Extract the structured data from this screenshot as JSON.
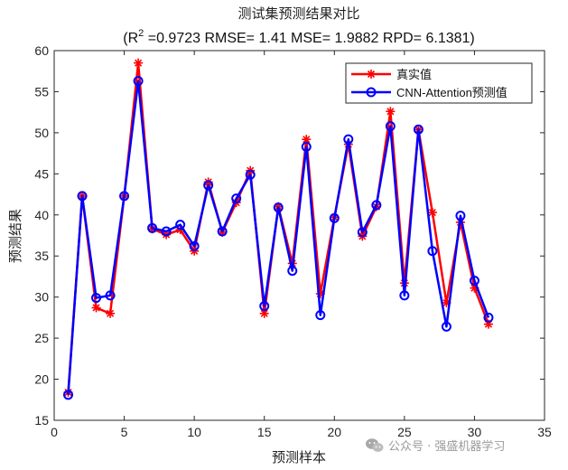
{
  "chart_data": {
    "type": "line",
    "title": "测试集预测结果对比",
    "subtitle_prefix": "(R",
    "subtitle_sup": "2",
    "subtitle_rest": " =0.9723 RMSE= 1.41 MSE= 1.9882 RPD= 6.1381)",
    "xlabel": "预测样本",
    "ylabel": "预测结果",
    "xlim": [
      0,
      35
    ],
    "ylim": [
      15,
      60
    ],
    "xticks": [
      0,
      5,
      10,
      15,
      20,
      25,
      30,
      35
    ],
    "yticks": [
      15,
      20,
      25,
      30,
      35,
      40,
      45,
      50,
      55,
      60
    ],
    "grid": false,
    "legend_position": "top-right",
    "x": [
      1,
      2,
      3,
      4,
      5,
      6,
      7,
      8,
      9,
      10,
      11,
      12,
      13,
      14,
      15,
      16,
      17,
      18,
      19,
      20,
      21,
      22,
      23,
      24,
      25,
      26,
      27,
      28,
      29,
      30,
      31
    ],
    "series": [
      {
        "name": "真实值",
        "color": "#ff0000",
        "marker": "asterisk",
        "values": [
          18.4,
          42.3,
          28.7,
          28.0,
          42.3,
          58.5,
          38.3,
          37.6,
          38.2,
          35.6,
          44.0,
          37.9,
          41.5,
          45.4,
          28.0,
          41.0,
          34.1,
          49.2,
          30.4,
          39.7,
          48.6,
          37.4,
          41.0,
          52.6,
          31.7,
          50.4,
          40.3,
          29.3,
          39.1,
          31.1,
          26.7
        ]
      },
      {
        "name": "CNN-Attention预测值",
        "color": "#0000ff",
        "marker": "circle",
        "values": [
          18.1,
          42.3,
          29.9,
          30.2,
          42.3,
          56.3,
          38.4,
          38.0,
          38.8,
          36.2,
          43.6,
          38.0,
          42.0,
          44.9,
          28.9,
          40.9,
          33.2,
          48.3,
          27.8,
          39.6,
          49.2,
          37.9,
          41.2,
          50.8,
          30.2,
          50.4,
          35.6,
          26.4,
          39.9,
          32.0,
          27.5
        ]
      }
    ]
  },
  "watermark": {
    "icon": "wechat-icon",
    "text": "公众号 · 强盛机器学习"
  }
}
